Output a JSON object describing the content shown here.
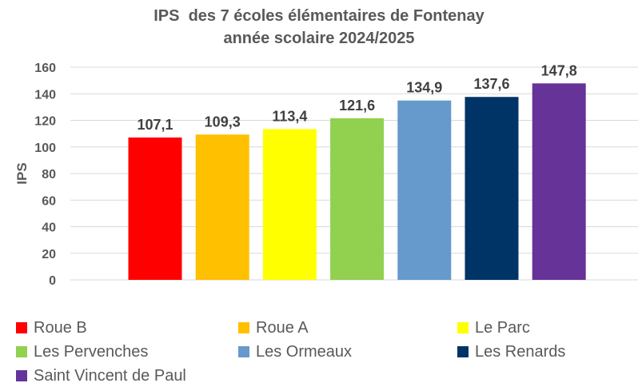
{
  "chart_data": {
    "type": "bar",
    "title": "IPS  des 7 écoles élémentaires de Fontenay",
    "subtitle": "année scolaire 2024/2025",
    "ylabel": "IPS",
    "xlabel": "",
    "ylim": [
      0,
      160
    ],
    "yticks": [
      0,
      20,
      40,
      60,
      80,
      100,
      120,
      140,
      160
    ],
    "grid": true,
    "legend_position": "bottom",
    "categories": [
      "Roue B",
      "Roue A",
      "Le Parc",
      "Les Pervenches",
      "Les Ormeaux",
      "Les Renards",
      "Saint Vincent de Paul"
    ],
    "values": [
      107.1,
      109.3,
      113.4,
      121.6,
      134.9,
      137.6,
      147.8
    ],
    "value_labels": [
      "107,1",
      "109,3",
      "113,4",
      "121,6",
      "134,9",
      "137,6",
      "147,8"
    ],
    "colors": [
      "#ff0000",
      "#ffc000",
      "#ffff00",
      "#92d050",
      "#6699cc",
      "#003366",
      "#663399"
    ]
  }
}
